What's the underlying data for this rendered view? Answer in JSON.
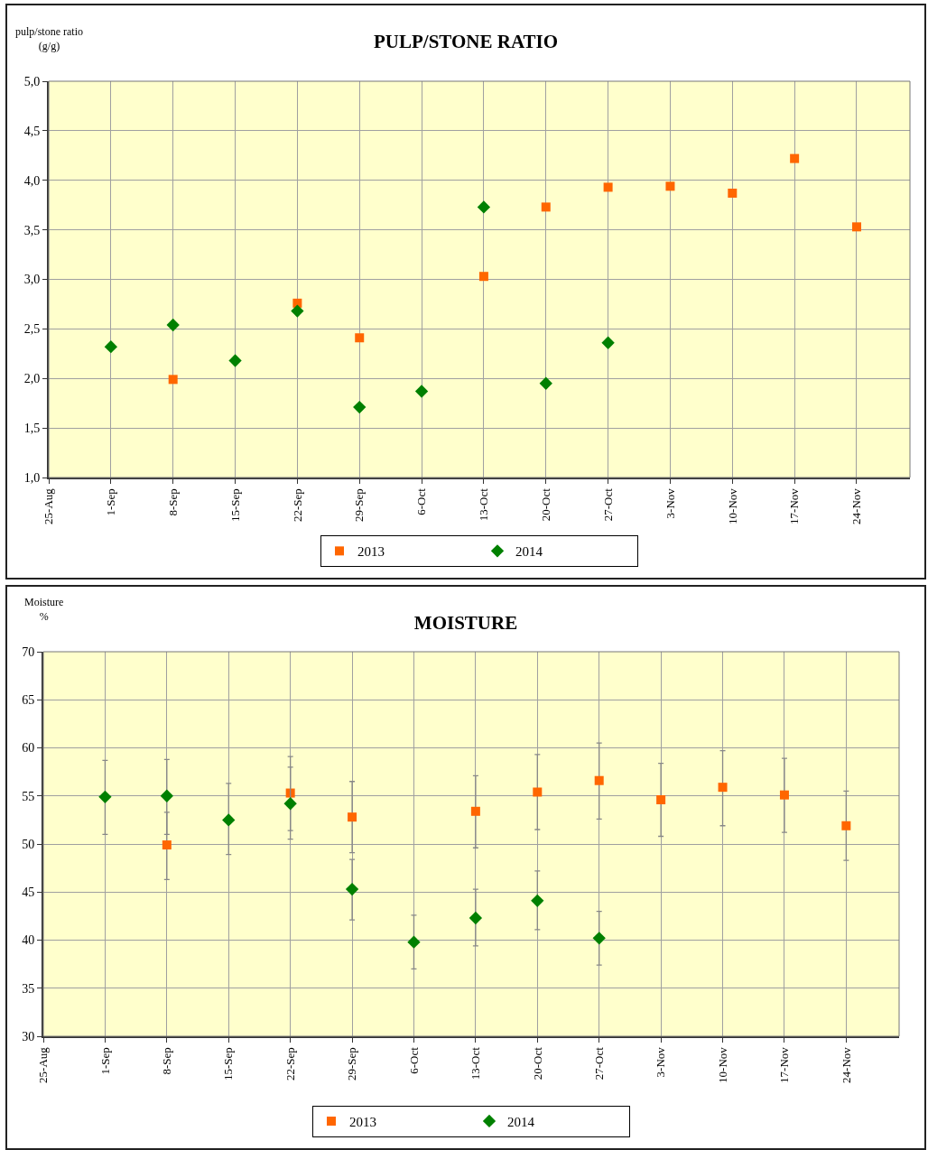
{
  "chart_data": [
    {
      "type": "scatter",
      "title": "PULP/STONE RATIO",
      "ylabel": "pulp/stone ratio\n(g/g)",
      "xlim": [
        "--08-25",
        "--11-30"
      ],
      "xticks": [
        {
          "value": "--08-25",
          "label": "25-Aug"
        },
        {
          "value": "--09-01",
          "label": "1-Sep"
        },
        {
          "value": "--09-08",
          "label": "8-Sep"
        },
        {
          "value": "--09-15",
          "label": "15-Sep"
        },
        {
          "value": "--09-22",
          "label": "22-Sep"
        },
        {
          "value": "--09-29",
          "label": "29-Sep"
        },
        {
          "value": "--10-06",
          "label": "6-Oct"
        },
        {
          "value": "--10-13",
          "label": "13-Oct"
        },
        {
          "value": "--10-20",
          "label": "20-Oct"
        },
        {
          "value": "--10-27",
          "label": "27-Oct"
        },
        {
          "value": "--11-03",
          "label": "3-Nov"
        },
        {
          "value": "--11-10",
          "label": "10-Nov"
        },
        {
          "value": "--11-17",
          "label": "17-Nov"
        },
        {
          "value": "--11-24",
          "label": "24-Nov"
        }
      ],
      "ylim": [
        1,
        5
      ],
      "yticks": [
        {
          "value": 1,
          "label": "1,0"
        },
        {
          "value": 1.5,
          "label": "1,5"
        },
        {
          "value": 2,
          "label": "2,0"
        },
        {
          "value": 2.5,
          "label": "2,5"
        },
        {
          "value": 3,
          "label": "3,0"
        },
        {
          "value": 3.5,
          "label": "3,5"
        },
        {
          "value": 4,
          "label": "4,0"
        },
        {
          "value": 4.5,
          "label": "4,5"
        },
        {
          "value": 5,
          "label": "5,0"
        }
      ],
      "grid": true,
      "legend": "bottom",
      "series": [
        {
          "name": "2013",
          "color": "#ff6600",
          "marker": "square",
          "x": [
            "--09-08",
            "--09-22",
            "--09-29",
            "--10-13",
            "--10-20",
            "--10-27",
            "--11-03",
            "--11-10",
            "--11-17",
            "--11-24"
          ],
          "values": [
            1.99,
            2.76,
            2.41,
            3.03,
            3.73,
            3.93,
            3.94,
            3.87,
            4.22,
            3.53
          ]
        },
        {
          "name": "2014",
          "color": "#008000",
          "marker": "diamond",
          "x": [
            "--09-01",
            "--09-08",
            "--09-15",
            "--09-22",
            "--09-29",
            "--10-06",
            "--10-13",
            "--10-20",
            "--10-27"
          ],
          "values": [
            2.32,
            2.54,
            2.18,
            2.68,
            1.71,
            1.87,
            3.73,
            1.95,
            2.36
          ]
        }
      ]
    },
    {
      "type": "scatter",
      "title": "MOISTURE",
      "ylabel": "Moisture\n%",
      "xlim": [
        "--08-25",
        "--11-30"
      ],
      "xticks": [
        {
          "value": "--08-25",
          "label": "25-Aug"
        },
        {
          "value": "--09-01",
          "label": "1-Sep"
        },
        {
          "value": "--09-08",
          "label": "8-Sep"
        },
        {
          "value": "--09-15",
          "label": "15-Sep"
        },
        {
          "value": "--09-22",
          "label": "22-Sep"
        },
        {
          "value": "--09-29",
          "label": "29-Sep"
        },
        {
          "value": "--10-06",
          "label": "6-Oct"
        },
        {
          "value": "--10-13",
          "label": "13-Oct"
        },
        {
          "value": "--10-20",
          "label": "20-Oct"
        },
        {
          "value": "--10-27",
          "label": "27-Oct"
        },
        {
          "value": "--11-03",
          "label": "3-Nov"
        },
        {
          "value": "--11-10",
          "label": "10-Nov"
        },
        {
          "value": "--11-17",
          "label": "17-Nov"
        },
        {
          "value": "--11-24",
          "label": "24-Nov"
        }
      ],
      "ylim": [
        30,
        70
      ],
      "yticks": [
        30,
        35,
        40,
        45,
        50,
        55,
        60,
        65,
        70
      ],
      "grid": true,
      "legend": "bottom",
      "series": [
        {
          "name": "2013",
          "color": "#ff6600",
          "marker": "square",
          "x": [
            "--09-08",
            "--09-22",
            "--09-29",
            "--10-13",
            "--10-20",
            "--10-27",
            "--11-03",
            "--11-10",
            "--11-17",
            "--11-24"
          ],
          "values": [
            49.9,
            55.3,
            52.8,
            53.4,
            55.4,
            56.6,
            54.6,
            55.9,
            55.1,
            51.9
          ],
          "errors": [
            [
              46.3,
              53.3
            ],
            [
              51.4,
              59.1
            ],
            [
              49.1,
              56.5
            ],
            [
              49.6,
              57.1
            ],
            [
              51.5,
              59.3
            ],
            [
              52.6,
              60.5
            ],
            [
              50.8,
              58.4
            ],
            [
              51.9,
              59.7
            ],
            [
              51.2,
              58.9
            ],
            [
              48.3,
              55.5
            ]
          ]
        },
        {
          "name": "2014",
          "color": "#008000",
          "marker": "diamond",
          "x": [
            "--09-01",
            "--09-08",
            "--09-15",
            "--09-22",
            "--09-29",
            "--10-06",
            "--10-13",
            "--10-20",
            "--10-27"
          ],
          "values": [
            54.9,
            55.0,
            52.5,
            54.2,
            45.3,
            39.8,
            42.3,
            44.1,
            40.2
          ],
          "errors": [
            [
              51.0,
              58.7
            ],
            [
              51.0,
              58.8
            ],
            [
              48.9,
              56.3
            ],
            [
              50.5,
              58.0
            ],
            [
              42.1,
              48.4
            ],
            [
              37.0,
              42.6
            ],
            [
              39.4,
              45.3
            ],
            [
              41.1,
              47.2
            ],
            [
              37.4,
              43.0
            ]
          ]
        }
      ]
    }
  ]
}
